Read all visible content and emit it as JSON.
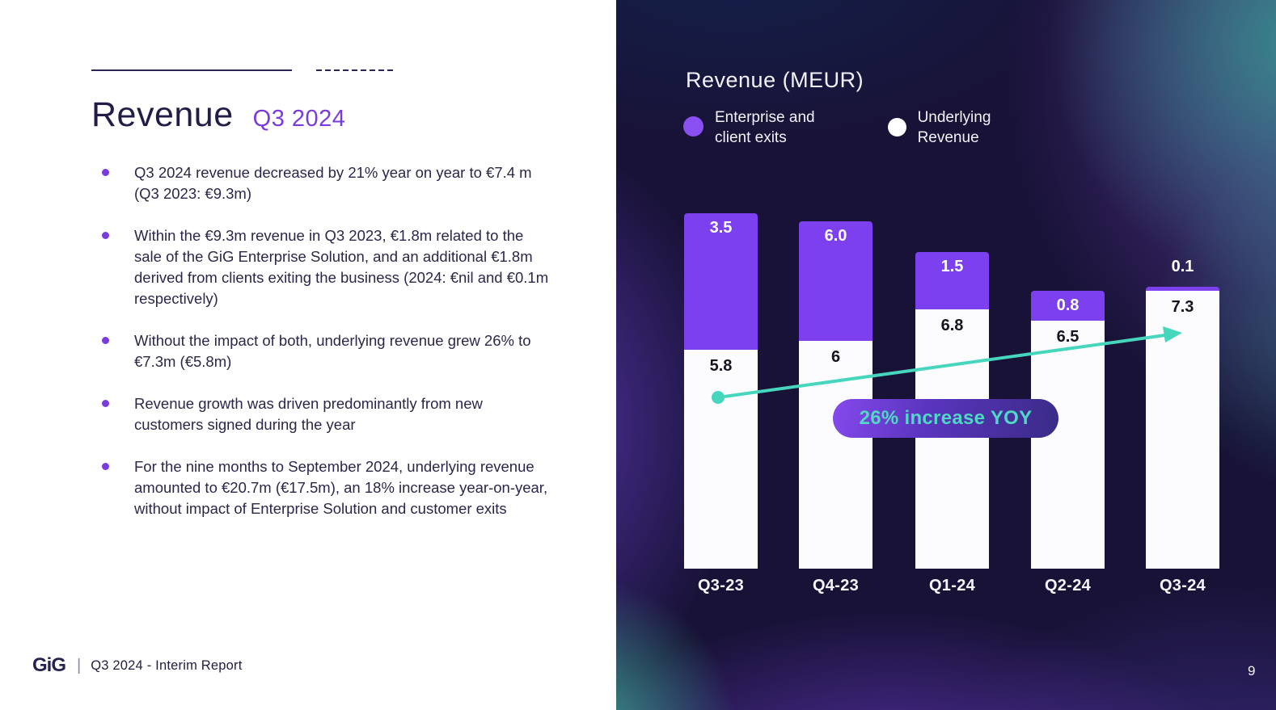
{
  "left_panel": {
    "title": "Revenue",
    "title_suffix": "Q3 2024",
    "bullets": [
      "Q3 2024 revenue decreased by 21% year on year to €7.4 m (Q3 2023: €9.3m)",
      "Within the €9.3m revenue in Q3 2023, €1.8m related to the sale of the GiG Enterprise Solution, and an additional €1.8m derived from clients exiting the business (2024: €nil and €0.1m respectively)",
      "Without the impact of both, underlying revenue grew 26% to €7.3m (€5.8m)",
      "Revenue growth was driven predominantly from new customers signed during the year",
      "For the nine months to September 2024, underlying revenue amounted to €20.7m (€17.5m), an 18% increase year-on-year, without impact of Enterprise Solution and customer exits"
    ],
    "footer": {
      "logo": "GiG",
      "separator": "|",
      "text": "Q3 2024 - Interim Report"
    }
  },
  "chart": {
    "title": "Revenue (MEUR)",
    "legend": [
      {
        "label": "Enterprise and\nclient exits",
        "color": "#8a4ff0"
      },
      {
        "label": "Underlying\nRevenue",
        "color": "#ffffff"
      }
    ],
    "annotation": "26% increase YOY",
    "page_number": "9"
  },
  "chart_data": {
    "type": "bar",
    "stacked": true,
    "title": "Revenue (MEUR)",
    "unit": "MEUR",
    "categories": [
      "Q3-23",
      "Q4-23",
      "Q1-24",
      "Q2-24",
      "Q3-24"
    ],
    "series": [
      {
        "name": "Underlying Revenue",
        "values": [
          5.8,
          6,
          6.8,
          6.5,
          7.3
        ],
        "labels": [
          "5.8",
          "6",
          "6.8",
          "6.5",
          "7.3"
        ],
        "color": "#fcfbfe"
      },
      {
        "name": "Enterprise and client exits",
        "values": [
          3.5,
          6.0,
          1.5,
          0.8,
          0.1
        ],
        "labels": [
          "3.5",
          "6.0",
          "1.5",
          "0.8",
          "0.1"
        ],
        "color": "#7d40ee"
      }
    ],
    "annotation": "26% increase YOY",
    "legend_position": "top",
    "grid": false,
    "axes_shown": false
  },
  "colors": {
    "accent_purple": "#7d40ee",
    "accent_teal": "#45d6bd",
    "dark_navy_text": "#211d47",
    "panel_background": "#181236"
  }
}
